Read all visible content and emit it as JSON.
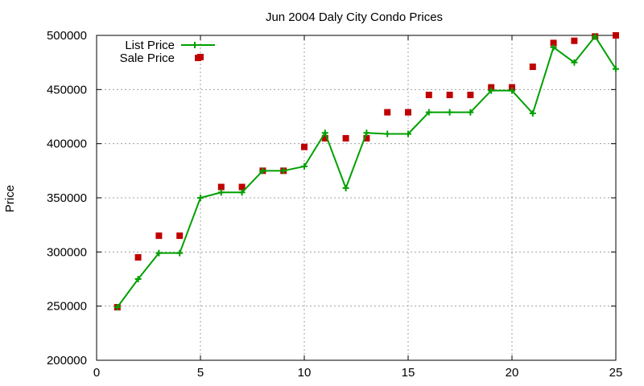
{
  "chart_data": {
    "type": "line",
    "title": "Jun 2004 Daly City Condo Prices",
    "xlabel": "",
    "ylabel": "Price",
    "xlim": [
      0,
      25
    ],
    "ylim": [
      200000,
      500000
    ],
    "xticks": [
      0,
      5,
      10,
      15,
      20,
      25
    ],
    "yticks": [
      200000,
      250000,
      300000,
      350000,
      400000,
      450000,
      500000
    ],
    "grid": true,
    "legend_position": "top-left",
    "series": [
      {
        "name": "List Price",
        "style": "linespoints",
        "color": "#00a000",
        "x": [
          1,
          2,
          3,
          4,
          5,
          6,
          7,
          8,
          9,
          10,
          11,
          12,
          13,
          14,
          15,
          16,
          17,
          18,
          19,
          20,
          21,
          22,
          23,
          24,
          25
        ],
        "values": [
          249000,
          275000,
          299000,
          299000,
          350000,
          355000,
          355000,
          375000,
          375000,
          379000,
          410000,
          359000,
          410000,
          409000,
          409000,
          429000,
          429000,
          429000,
          449000,
          449000,
          428000,
          489000,
          475000,
          499000,
          469000
        ]
      },
      {
        "name": "Sale Price",
        "style": "points",
        "color": "#c00000",
        "x": [
          1,
          2,
          3,
          4,
          5,
          6,
          7,
          8,
          9,
          10,
          11,
          12,
          13,
          14,
          15,
          16,
          17,
          18,
          19,
          20,
          21,
          22,
          23,
          24,
          25
        ],
        "values": [
          249000,
          295000,
          315000,
          315000,
          480000,
          360000,
          360000,
          375000,
          375000,
          397000,
          405000,
          405000,
          405000,
          429000,
          429000,
          445000,
          445000,
          445000,
          452000,
          452000,
          471000,
          493000,
          495000,
          499000,
          500000
        ]
      }
    ]
  }
}
